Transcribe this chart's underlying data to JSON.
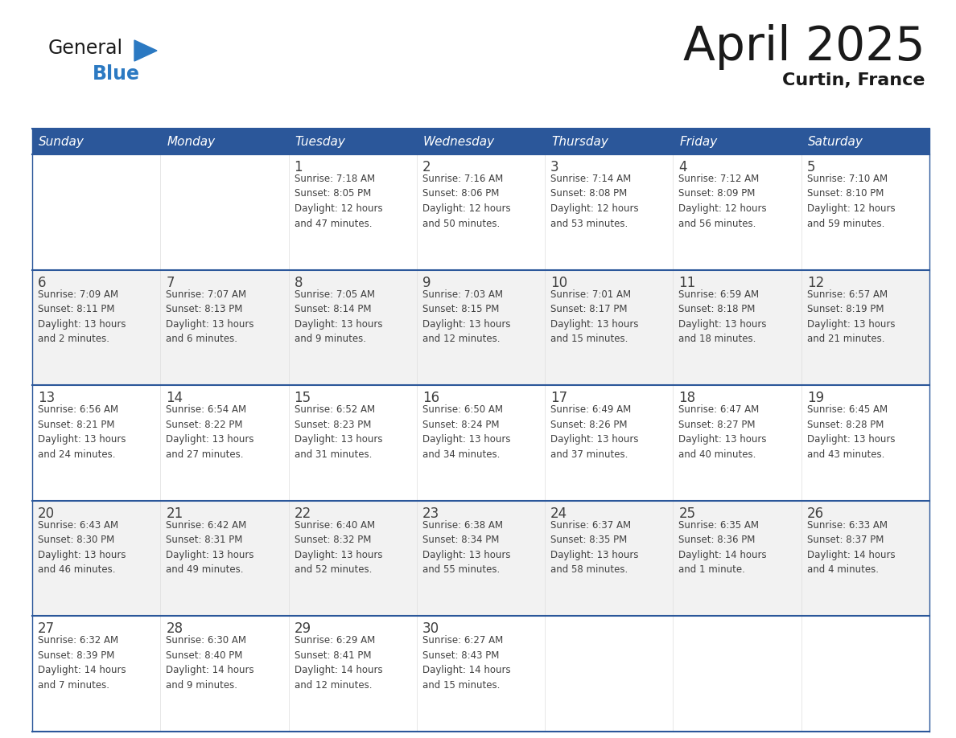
{
  "title": "April 2025",
  "subtitle": "Curtin, France",
  "header_bg": "#2B579A",
  "header_text_color": "#FFFFFF",
  "cell_bg_white": "#FFFFFF",
  "cell_bg_light": "#F2F2F2",
  "border_color": "#2B579A",
  "text_color": "#404040",
  "days_of_week": [
    "Sunday",
    "Monday",
    "Tuesday",
    "Wednesday",
    "Thursday",
    "Friday",
    "Saturday"
  ],
  "weeks": [
    [
      {
        "day": "",
        "info": ""
      },
      {
        "day": "",
        "info": ""
      },
      {
        "day": "1",
        "info": "Sunrise: 7:18 AM\nSunset: 8:05 PM\nDaylight: 12 hours\nand 47 minutes."
      },
      {
        "day": "2",
        "info": "Sunrise: 7:16 AM\nSunset: 8:06 PM\nDaylight: 12 hours\nand 50 minutes."
      },
      {
        "day": "3",
        "info": "Sunrise: 7:14 AM\nSunset: 8:08 PM\nDaylight: 12 hours\nand 53 minutes."
      },
      {
        "day": "4",
        "info": "Sunrise: 7:12 AM\nSunset: 8:09 PM\nDaylight: 12 hours\nand 56 minutes."
      },
      {
        "day": "5",
        "info": "Sunrise: 7:10 AM\nSunset: 8:10 PM\nDaylight: 12 hours\nand 59 minutes."
      }
    ],
    [
      {
        "day": "6",
        "info": "Sunrise: 7:09 AM\nSunset: 8:11 PM\nDaylight: 13 hours\nand 2 minutes."
      },
      {
        "day": "7",
        "info": "Sunrise: 7:07 AM\nSunset: 8:13 PM\nDaylight: 13 hours\nand 6 minutes."
      },
      {
        "day": "8",
        "info": "Sunrise: 7:05 AM\nSunset: 8:14 PM\nDaylight: 13 hours\nand 9 minutes."
      },
      {
        "day": "9",
        "info": "Sunrise: 7:03 AM\nSunset: 8:15 PM\nDaylight: 13 hours\nand 12 minutes."
      },
      {
        "day": "10",
        "info": "Sunrise: 7:01 AM\nSunset: 8:17 PM\nDaylight: 13 hours\nand 15 minutes."
      },
      {
        "day": "11",
        "info": "Sunrise: 6:59 AM\nSunset: 8:18 PM\nDaylight: 13 hours\nand 18 minutes."
      },
      {
        "day": "12",
        "info": "Sunrise: 6:57 AM\nSunset: 8:19 PM\nDaylight: 13 hours\nand 21 minutes."
      }
    ],
    [
      {
        "day": "13",
        "info": "Sunrise: 6:56 AM\nSunset: 8:21 PM\nDaylight: 13 hours\nand 24 minutes."
      },
      {
        "day": "14",
        "info": "Sunrise: 6:54 AM\nSunset: 8:22 PM\nDaylight: 13 hours\nand 27 minutes."
      },
      {
        "day": "15",
        "info": "Sunrise: 6:52 AM\nSunset: 8:23 PM\nDaylight: 13 hours\nand 31 minutes."
      },
      {
        "day": "16",
        "info": "Sunrise: 6:50 AM\nSunset: 8:24 PM\nDaylight: 13 hours\nand 34 minutes."
      },
      {
        "day": "17",
        "info": "Sunrise: 6:49 AM\nSunset: 8:26 PM\nDaylight: 13 hours\nand 37 minutes."
      },
      {
        "day": "18",
        "info": "Sunrise: 6:47 AM\nSunset: 8:27 PM\nDaylight: 13 hours\nand 40 minutes."
      },
      {
        "day": "19",
        "info": "Sunrise: 6:45 AM\nSunset: 8:28 PM\nDaylight: 13 hours\nand 43 minutes."
      }
    ],
    [
      {
        "day": "20",
        "info": "Sunrise: 6:43 AM\nSunset: 8:30 PM\nDaylight: 13 hours\nand 46 minutes."
      },
      {
        "day": "21",
        "info": "Sunrise: 6:42 AM\nSunset: 8:31 PM\nDaylight: 13 hours\nand 49 minutes."
      },
      {
        "day": "22",
        "info": "Sunrise: 6:40 AM\nSunset: 8:32 PM\nDaylight: 13 hours\nand 52 minutes."
      },
      {
        "day": "23",
        "info": "Sunrise: 6:38 AM\nSunset: 8:34 PM\nDaylight: 13 hours\nand 55 minutes."
      },
      {
        "day": "24",
        "info": "Sunrise: 6:37 AM\nSunset: 8:35 PM\nDaylight: 13 hours\nand 58 minutes."
      },
      {
        "day": "25",
        "info": "Sunrise: 6:35 AM\nSunset: 8:36 PM\nDaylight: 14 hours\nand 1 minute."
      },
      {
        "day": "26",
        "info": "Sunrise: 6:33 AM\nSunset: 8:37 PM\nDaylight: 14 hours\nand 4 minutes."
      }
    ],
    [
      {
        "day": "27",
        "info": "Sunrise: 6:32 AM\nSunset: 8:39 PM\nDaylight: 14 hours\nand 7 minutes."
      },
      {
        "day": "28",
        "info": "Sunrise: 6:30 AM\nSunset: 8:40 PM\nDaylight: 14 hours\nand 9 minutes."
      },
      {
        "day": "29",
        "info": "Sunrise: 6:29 AM\nSunset: 8:41 PM\nDaylight: 14 hours\nand 12 minutes."
      },
      {
        "day": "30",
        "info": "Sunrise: 6:27 AM\nSunset: 8:43 PM\nDaylight: 14 hours\nand 15 minutes."
      },
      {
        "day": "",
        "info": ""
      },
      {
        "day": "",
        "info": ""
      },
      {
        "day": "",
        "info": ""
      }
    ]
  ],
  "logo_general_color": "#1a1a1a",
  "logo_blue_color": "#2B79C2"
}
